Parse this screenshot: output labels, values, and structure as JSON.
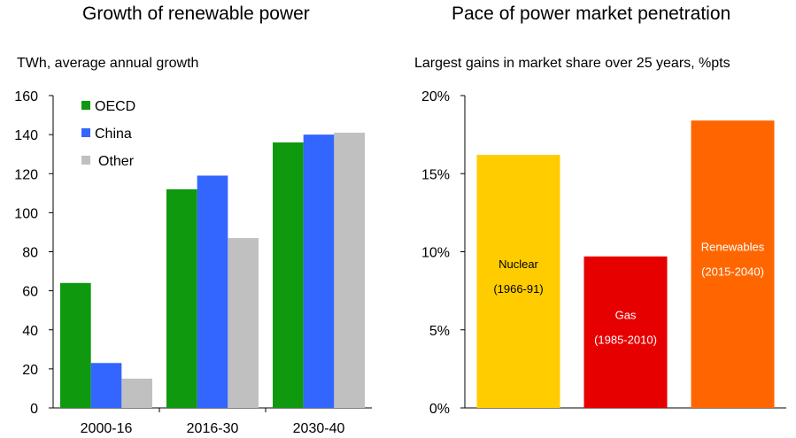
{
  "chart_data": [
    {
      "type": "bar",
      "title": "Growth of renewable power",
      "ylabel": "TWh, average annual growth",
      "categories": [
        "2000-16",
        "2016-30",
        "2030-40"
      ],
      "series": [
        {
          "name": "OECD",
          "values": [
            64,
            112,
            136
          ],
          "color": "#0e990e"
        },
        {
          "name": "China",
          "values": [
            23,
            119,
            140
          ],
          "color": "#3366ff"
        },
        {
          "name": "Other",
          "values": [
            15,
            87,
            141
          ],
          "color": "#c0c0c0"
        }
      ],
      "ylim": [
        0,
        160
      ],
      "yticks": [
        "0",
        "20",
        "40",
        "60",
        "80",
        "100",
        "120",
        "140",
        "160"
      ],
      "legend": "top-left",
      "grid": false
    },
    {
      "type": "bar",
      "title": "Pace of power market penetration",
      "ylabel": "Largest gains in market share over 25 years, %pts",
      "categories": [
        "Nuclear",
        "Gas",
        "Renewables"
      ],
      "bar_labels": [
        [
          "Nuclear",
          "(1966-91)"
        ],
        [
          "Gas",
          "(1985-2010)"
        ],
        [
          "Renewables",
          "(2015-2040)"
        ]
      ],
      "values": [
        16.2,
        9.7,
        18.4
      ],
      "colors": [
        "#ffcc00",
        "#e60000",
        "#ff6600"
      ],
      "label_colors": [
        "#000000",
        "#ffffff",
        "#ffffff"
      ],
      "ylim": [
        0,
        20
      ],
      "yticks": [
        "0%",
        "5%",
        "10%",
        "15%",
        "20%"
      ],
      "grid": false
    }
  ]
}
